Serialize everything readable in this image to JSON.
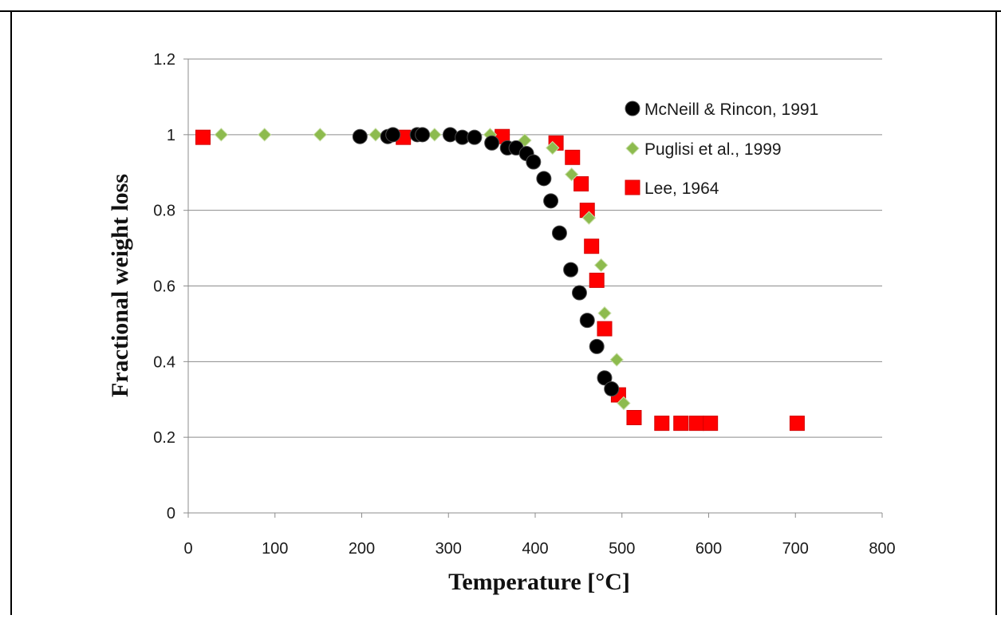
{
  "chart_data": {
    "type": "scatter",
    "title": "",
    "xlabel": "Temperature [°C]",
    "ylabel": "Fractional weight loss",
    "xlim": [
      0,
      800
    ],
    "ylim": [
      0,
      1.2
    ],
    "x_ticks": [
      "0",
      "100",
      "200",
      "300",
      "400",
      "500",
      "600",
      "700",
      "800"
    ],
    "y_ticks": [
      "0",
      "0.2",
      "0.4",
      "0.6",
      "0.8",
      "1",
      "1.2"
    ],
    "grid": "horizontal",
    "legend_position": "top-right",
    "series": [
      {
        "name": "McNeill & Rincon, 1991",
        "marker": "circle",
        "color": "#000000",
        "points": [
          [
            198,
            0.995
          ],
          [
            230,
            0.995
          ],
          [
            236,
            1.0
          ],
          [
            264,
            1.0
          ],
          [
            270,
            1.0
          ],
          [
            302,
            1.0
          ],
          [
            316,
            0.993
          ],
          [
            330,
            0.993
          ],
          [
            350,
            0.978
          ],
          [
            368,
            0.965
          ],
          [
            378,
            0.965
          ],
          [
            390,
            0.95
          ],
          [
            398,
            0.928
          ],
          [
            410,
            0.884
          ],
          [
            418,
            0.825
          ],
          [
            428,
            0.74
          ],
          [
            441,
            0.643
          ],
          [
            451,
            0.582
          ],
          [
            460,
            0.509
          ],
          [
            471,
            0.44
          ],
          [
            480,
            0.357
          ],
          [
            488,
            0.328
          ]
        ]
      },
      {
        "name": "Puglisi et al., 1999",
        "marker": "diamond",
        "color": "#8dbb4e",
        "points": [
          [
            38,
            1.0
          ],
          [
            88,
            1.0
          ],
          [
            152,
            1.0
          ],
          [
            216,
            1.0
          ],
          [
            284,
            1.0
          ],
          [
            348,
            1.0
          ],
          [
            388,
            0.985
          ],
          [
            420,
            0.965
          ],
          [
            442,
            0.895
          ],
          [
            462,
            0.78
          ],
          [
            476,
            0.655
          ],
          [
            480,
            0.528
          ],
          [
            494,
            0.405
          ],
          [
            502,
            0.29
          ]
        ]
      },
      {
        "name": "Lee, 1964",
        "marker": "square",
        "color": "#ff0000",
        "points": [
          [
            17,
            0.993
          ],
          [
            248,
            0.993
          ],
          [
            362,
            0.995
          ],
          [
            424,
            0.978
          ],
          [
            443,
            0.94
          ],
          [
            453,
            0.87
          ],
          [
            460,
            0.8
          ],
          [
            465,
            0.705
          ],
          [
            471,
            0.615
          ],
          [
            480,
            0.487
          ],
          [
            496,
            0.312
          ],
          [
            514,
            0.252
          ],
          [
            546,
            0.237
          ],
          [
            568,
            0.237
          ],
          [
            586,
            0.237
          ],
          [
            602,
            0.237
          ],
          [
            702,
            0.237
          ]
        ]
      }
    ]
  }
}
